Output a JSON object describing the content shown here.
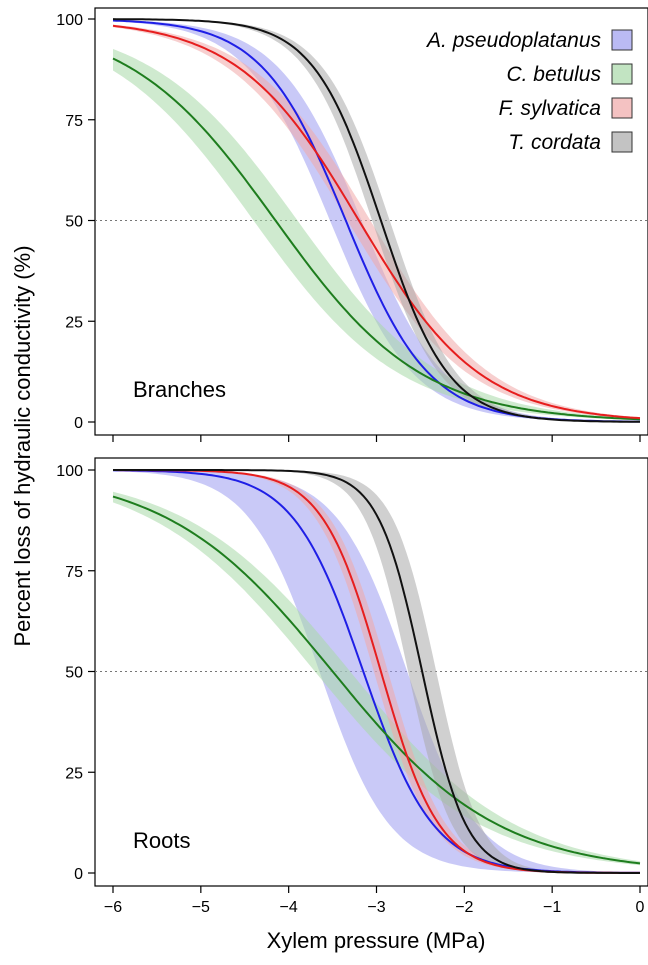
{
  "figure": {
    "ylabel": "Percent loss of hydraulic conductivity (%)",
    "xlabel": "Xylem pressure (MPa)"
  },
  "chart_data": [
    {
      "type": "line",
      "panel_label": "Branches",
      "xlim": [
        -6,
        0
      ],
      "ylim": [
        0,
        100
      ],
      "x_ticks": [
        -6,
        -5,
        -4,
        -3,
        -2,
        -1,
        0
      ],
      "x_tick_labels_shown": false,
      "y_ticks": [
        0,
        25,
        50,
        75,
        100
      ],
      "reference_line": {
        "y": 50,
        "style": "dotted"
      },
      "legend": {
        "placement": "top-right",
        "entries": [
          "A. pseudoplatanus",
          "C. betulus",
          "F. sylvatica",
          "T. cordata"
        ]
      },
      "series": [
        {
          "name": "A. pseudoplatanus",
          "color": "#1f1fe6",
          "band_color": "#9d9df0",
          "p50": -3.35,
          "slope": 2.1,
          "band_halfwidth": 0.18
        },
        {
          "name": "C. betulus",
          "color": "#1e7d1e",
          "band_color": "#a8d8a8",
          "p50": -4.15,
          "slope": 1.2,
          "band_halfwidth": 0.25
        },
        {
          "name": "F. sylvatica",
          "color": "#e61e1e",
          "band_color": "#f0a8a8",
          "p50": -3.2,
          "slope": 1.45,
          "band_halfwidth": 0.13
        },
        {
          "name": "T. cordata",
          "color": "#111111",
          "band_color": "#aaaaaa",
          "p50": -2.95,
          "slope": 2.6,
          "band_halfwidth": 0.1
        }
      ]
    },
    {
      "type": "line",
      "panel_label": "Roots",
      "xlim": [
        -6,
        0
      ],
      "ylim": [
        0,
        100
      ],
      "x_ticks": [
        -6,
        -5,
        -4,
        -3,
        -2,
        -1,
        0
      ],
      "x_tick_labels": [
        "-6",
        "-5",
        "-4",
        "-3",
        "-2",
        "-1",
        "0"
      ],
      "x_tick_labels_shown": true,
      "y_ticks": [
        0,
        25,
        50,
        75,
        100
      ],
      "reference_line": {
        "y": 50,
        "style": "dotted"
      },
      "series": [
        {
          "name": "A. pseudoplatanus",
          "color": "#1f1fe6",
          "band_color": "#9d9df0",
          "p50": -3.15,
          "slope": 2.5,
          "band_halfwidth": 0.5
        },
        {
          "name": "C. betulus",
          "color": "#1e7d1e",
          "band_color": "#a8d8a8",
          "p50": -3.5,
          "slope": 1.06,
          "band_halfwidth": 0.2
        },
        {
          "name": "F. sylvatica",
          "color": "#e61e1e",
          "band_color": "#f0a8a8",
          "p50": -2.95,
          "slope": 3.0,
          "band_halfwidth": 0.08
        },
        {
          "name": "T. cordata",
          "color": "#111111",
          "band_color": "#aaaaaa",
          "p50": -2.48,
          "slope": 4.0,
          "band_halfwidth": 0.16
        }
      ]
    }
  ]
}
